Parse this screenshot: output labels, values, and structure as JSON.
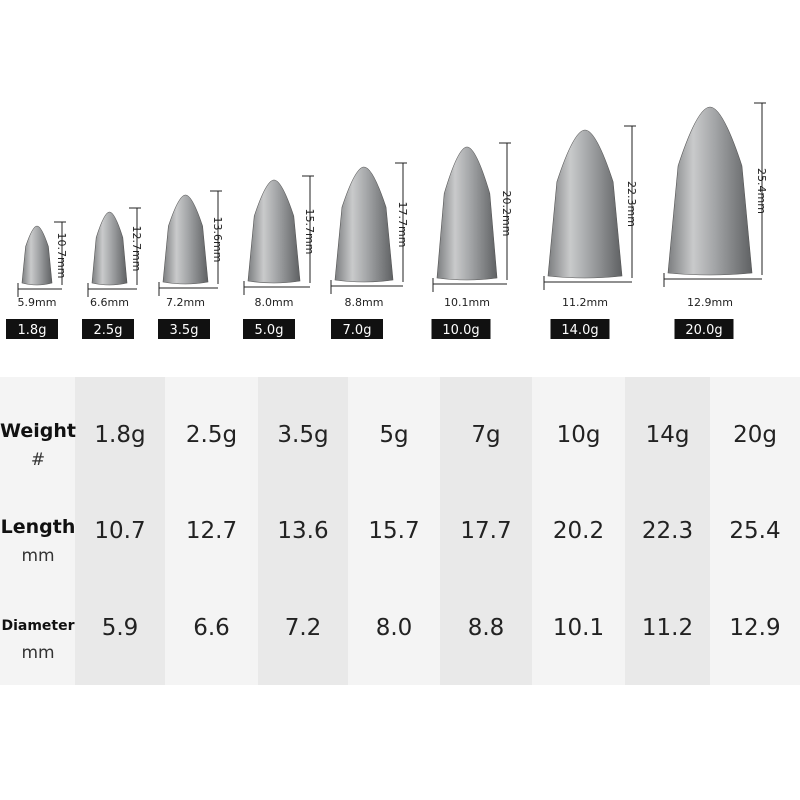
{
  "sinkers": [
    {
      "length": "10.7mm",
      "diameter": "5.9mm",
      "weight": "1.8g"
    },
    {
      "length": "12.7mm",
      "diameter": "6.6mm",
      "weight": "2.5g"
    },
    {
      "length": "13.6mm",
      "diameter": "7.2mm",
      "weight": "3.5g"
    },
    {
      "length": "15.7mm",
      "diameter": "8.0mm",
      "weight": "5.0g"
    },
    {
      "length": "17.7mm",
      "diameter": "8.8mm",
      "weight": "7.0g"
    },
    {
      "length": "20.2mm",
      "diameter": "10.1mm",
      "weight": "10.0g"
    },
    {
      "length": "22.3mm",
      "diameter": "11.2mm",
      "weight": "14.0g"
    },
    {
      "length": "25.4mm",
      "diameter": "12.9mm",
      "weight": "20.0g"
    }
  ],
  "table": {
    "rows": [
      {
        "label": "Weight",
        "unit": "#",
        "cells": [
          "1.8g",
          "2.5g",
          "3.5g",
          "5g",
          "7g",
          "10g",
          "14g",
          "20g"
        ]
      },
      {
        "label": "Length",
        "unit": "mm",
        "cells": [
          "10.7",
          "12.7",
          "13.6",
          "15.7",
          "17.7",
          "20.2",
          "22.3",
          "25.4"
        ]
      },
      {
        "label": "Diameter",
        "unit": "mm",
        "cells": [
          "5.9",
          "6.6",
          "7.2",
          "8.0",
          "8.8",
          "10.1",
          "11.2",
          "12.9"
        ]
      }
    ]
  }
}
